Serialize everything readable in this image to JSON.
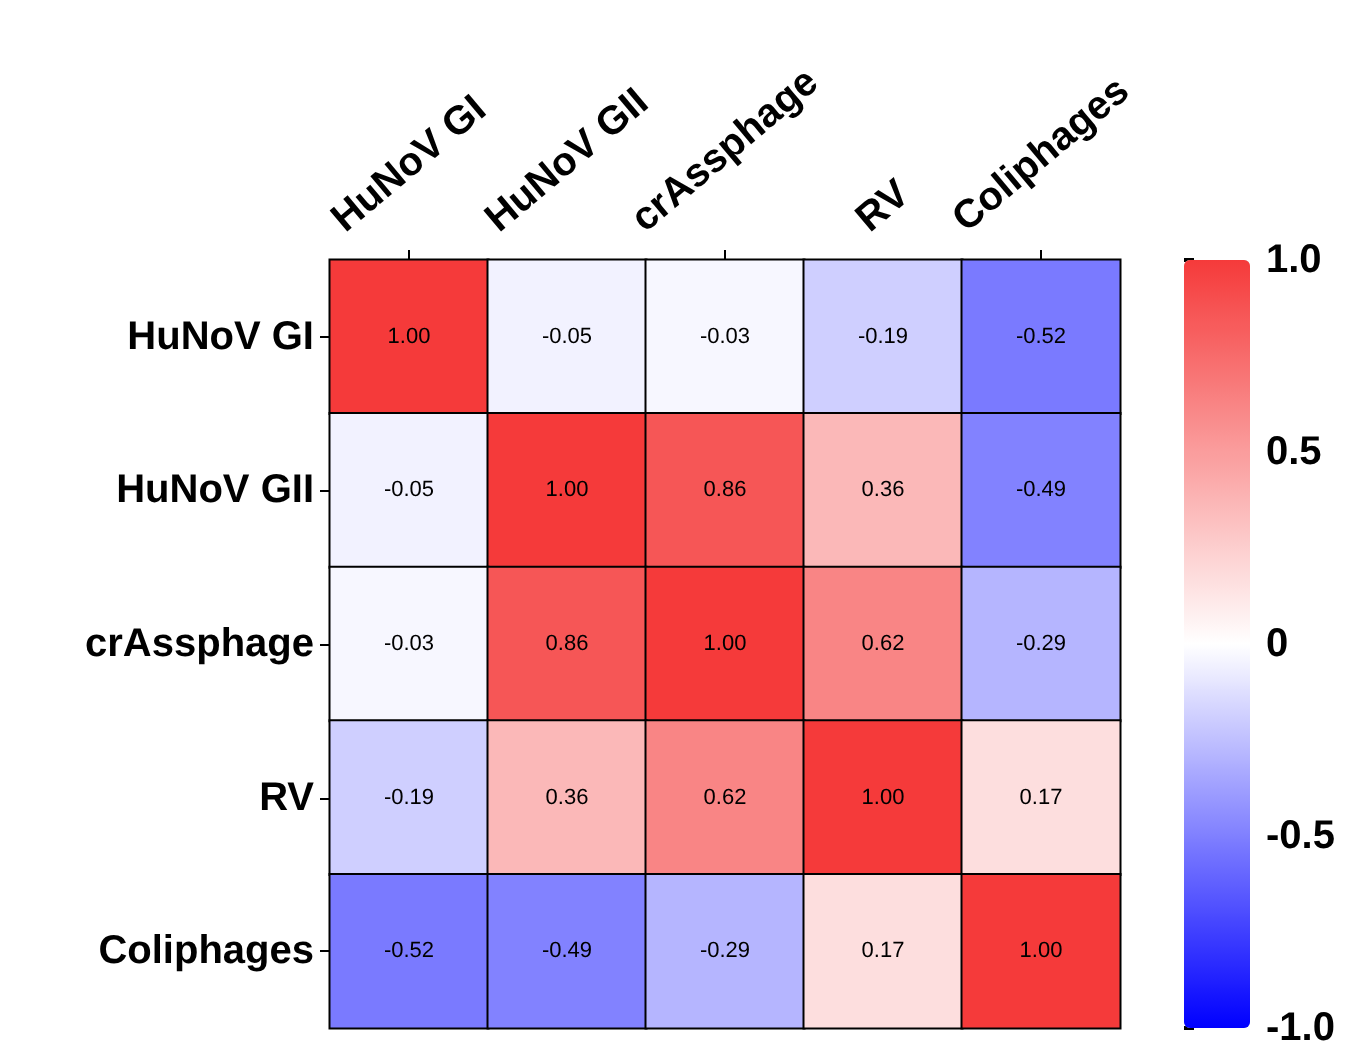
{
  "chart_data": {
    "type": "heatmap",
    "categories": [
      "HuNoV GI",
      "HuNoV GII",
      "crAssphage",
      "RV",
      "Coliphages"
    ],
    "y_categories": [
      "HuNoV GI",
      "HuNoV GII",
      "crAssphage",
      "RV",
      "Coliphages"
    ],
    "cells": [
      [
        1.0,
        -0.05,
        -0.03,
        -0.19,
        -0.52
      ],
      [
        -0.05,
        1.0,
        0.86,
        0.36,
        -0.49
      ],
      [
        -0.03,
        0.86,
        1.0,
        0.62,
        -0.29
      ],
      [
        -0.19,
        0.36,
        0.62,
        1.0,
        0.17
      ],
      [
        -0.52,
        -0.49,
        -0.29,
        0.17,
        1.0
      ]
    ],
    "cell_labels": [
      [
        "1.00",
        "-0.05",
        "-0.03",
        "-0.19",
        "-0.52"
      ],
      [
        "-0.05",
        "1.00",
        "0.86",
        "0.36",
        "-0.49"
      ],
      [
        "-0.03",
        "0.86",
        "1.00",
        "0.62",
        "-0.29"
      ],
      [
        "-0.19",
        "0.36",
        "0.62",
        "1.00",
        "0.17"
      ],
      [
        "-0.52",
        "-0.49",
        "-0.29",
        "0.17",
        "1.00"
      ]
    ],
    "clim": [
      -1,
      1
    ],
    "cticks": [
      {
        "value": -1,
        "label": "-1.0"
      },
      {
        "value": -0.5,
        "label": "-0.5"
      },
      {
        "value": 0,
        "label": "0"
      },
      {
        "value": 0.5,
        "label": "0.5"
      },
      {
        "value": 1,
        "label": "1.0"
      }
    ]
  }
}
